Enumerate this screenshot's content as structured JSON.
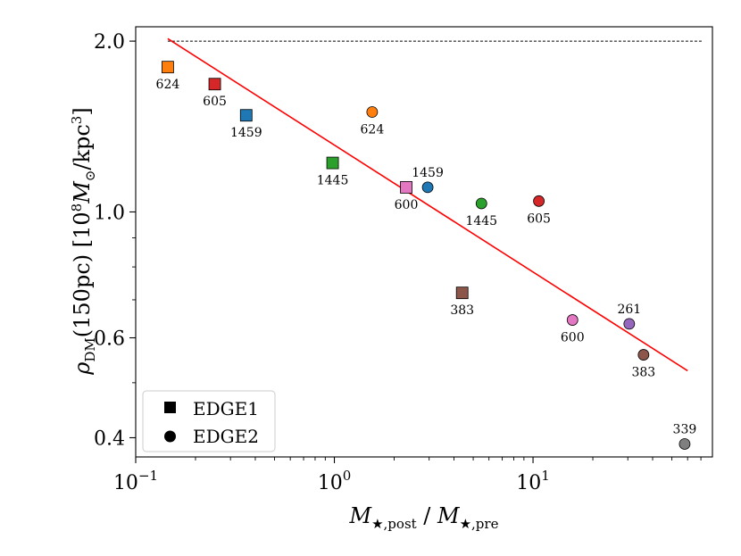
{
  "chart_data": {
    "type": "scatter",
    "title": "",
    "xlabel": "M★,post / M★,pre",
    "ylabel": "ρDM(150pc) [10⁸ M⊙/kpc³]",
    "x_scale": "log",
    "y_scale": "log",
    "xlim": [
      0.1,
      80
    ],
    "ylim": [
      0.37,
      2.12
    ],
    "x_ticks": [
      {
        "value": 0.1,
        "base": "10",
        "exp": "−1"
      },
      {
        "value": 1,
        "base": "10",
        "exp": "0"
      },
      {
        "value": 10,
        "base": "10",
        "exp": "1"
      }
    ],
    "y_ticks": [
      {
        "value": 0.4,
        "label": "0.4"
      },
      {
        "value": 0.6,
        "label": "0.6"
      },
      {
        "value": 1.0,
        "label": "1.0"
      },
      {
        "value": 2.0,
        "label": "2.0"
      }
    ],
    "reference_line": {
      "y": 2.0,
      "style": "dashed",
      "color": "#000000"
    },
    "fit_line": {
      "color": "#ff0000",
      "points": [
        [
          0.145,
          2.02
        ],
        [
          60,
          0.525
        ]
      ]
    },
    "series": [
      {
        "name": "EDGE1",
        "marker": "square",
        "points": [
          {
            "x": 0.145,
            "y": 1.8,
            "label": "624",
            "color": "#ff7f0e",
            "label_pos": "below"
          },
          {
            "x": 0.25,
            "y": 1.68,
            "label": "605",
            "color": "#d62728",
            "label_pos": "below"
          },
          {
            "x": 0.36,
            "y": 1.48,
            "label": "1459",
            "color": "#1f77b4",
            "label_pos": "below"
          },
          {
            "x": 0.98,
            "y": 1.22,
            "label": "1445",
            "color": "#2ca02c",
            "label_pos": "below"
          },
          {
            "x": 2.3,
            "y": 1.105,
            "label": "600",
            "color": "#e377c2",
            "label_pos": "below"
          },
          {
            "x": 4.4,
            "y": 0.72,
            "label": "383",
            "color": "#8c564b",
            "label_pos": "below"
          }
        ]
      },
      {
        "name": "EDGE2",
        "marker": "circle",
        "points": [
          {
            "x": 1.55,
            "y": 1.5,
            "label": "624",
            "color": "#ff7f0e",
            "label_pos": "below"
          },
          {
            "x": 2.95,
            "y": 1.105,
            "label": "1459",
            "color": "#1f77b4",
            "label_pos": "above"
          },
          {
            "x": 5.5,
            "y": 1.035,
            "label": "1445",
            "color": "#2ca02c",
            "label_pos": "below"
          },
          {
            "x": 10.7,
            "y": 1.045,
            "label": "605",
            "color": "#d62728",
            "label_pos": "below"
          },
          {
            "x": 15.8,
            "y": 0.645,
            "label": "600",
            "color": "#e377c2",
            "label_pos": "below"
          },
          {
            "x": 30.5,
            "y": 0.635,
            "label": "261",
            "color": "#9467bd",
            "label_pos": "above"
          },
          {
            "x": 36,
            "y": 0.56,
            "label": "383",
            "color": "#8c564b",
            "label_pos": "below"
          },
          {
            "x": 58,
            "y": 0.39,
            "label": "339",
            "color": "#7f7f7f",
            "label_pos": "above"
          }
        ]
      }
    ],
    "legend": {
      "position": "lower-left",
      "entries": [
        {
          "label": "EDGE1",
          "marker": "square"
        },
        {
          "label": "EDGE2",
          "marker": "circle"
        }
      ]
    }
  }
}
